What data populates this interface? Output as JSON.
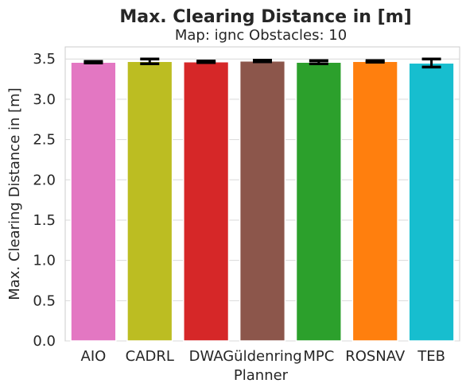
{
  "chart_data": {
    "type": "bar",
    "title": "Max. Clearing Distance in [m]",
    "subtitle": "Map: ignc Obstacles: 10",
    "xlabel": "Planner",
    "ylabel": "Max. Clearing Distance in [m]",
    "ylim": [
      0,
      3.65
    ],
    "yticks": [
      "0.0",
      "0.5",
      "1.0",
      "1.5",
      "2.0",
      "2.5",
      "3.0",
      "3.5"
    ],
    "grid": "horizontal",
    "categories": [
      "AIO",
      "CADRL",
      "DWA",
      "Güldenring",
      "MPC",
      "ROSNAV",
      "TEB"
    ],
    "values": [
      3.46,
      3.47,
      3.465,
      3.475,
      3.46,
      3.47,
      3.45
    ],
    "error": [
      0.01,
      0.03,
      0.01,
      0.01,
      0.02,
      0.01,
      0.05
    ],
    "colors": [
      "#e377c2",
      "#bcbd22",
      "#d62728",
      "#8c564b",
      "#2ca02c",
      "#ff7f0e",
      "#17becf"
    ]
  }
}
